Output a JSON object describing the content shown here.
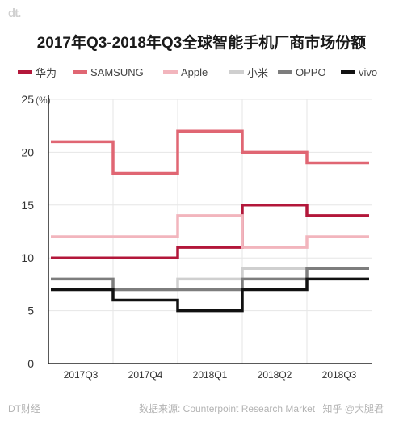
{
  "brand": {
    "logo": "dt."
  },
  "chart_data": {
    "type": "line",
    "title": "2017年Q3-2018年Q3全球智能手机厂商市场份额",
    "xlabel": "",
    "ylabel": "",
    "y_unit": "(%)",
    "categories": [
      "2017Q3",
      "2017Q4",
      "2018Q1",
      "2018Q2",
      "2018Q3"
    ],
    "ylim": [
      0,
      25
    ],
    "yticks": [
      0,
      5,
      10,
      15,
      20,
      25
    ],
    "step": true,
    "legend_position": "top",
    "series": [
      {
        "name": "华为",
        "color": "#b3173a",
        "values": [
          10,
          10,
          11,
          15,
          14
        ]
      },
      {
        "name": "SAMSUNG",
        "color": "#e06673",
        "values": [
          21,
          18,
          22,
          20,
          19
        ]
      },
      {
        "name": "Apple",
        "color": "#f2b5bd",
        "values": [
          12,
          12,
          14,
          11,
          12
        ]
      },
      {
        "name": "小米",
        "color": "#cfcfcf",
        "values": [
          7,
          7,
          8,
          9,
          9
        ]
      },
      {
        "name": "OPPO",
        "color": "#7d7d7d",
        "values": [
          8,
          7,
          7,
          8,
          9
        ]
      },
      {
        "name": "vivo",
        "color": "#111111",
        "values": [
          7,
          6,
          5,
          7,
          8
        ]
      }
    ]
  },
  "footer": {
    "left": "DT财经",
    "source": "数据来源: Counterpoint Research Market",
    "watermark": "知乎 @大腿君"
  }
}
